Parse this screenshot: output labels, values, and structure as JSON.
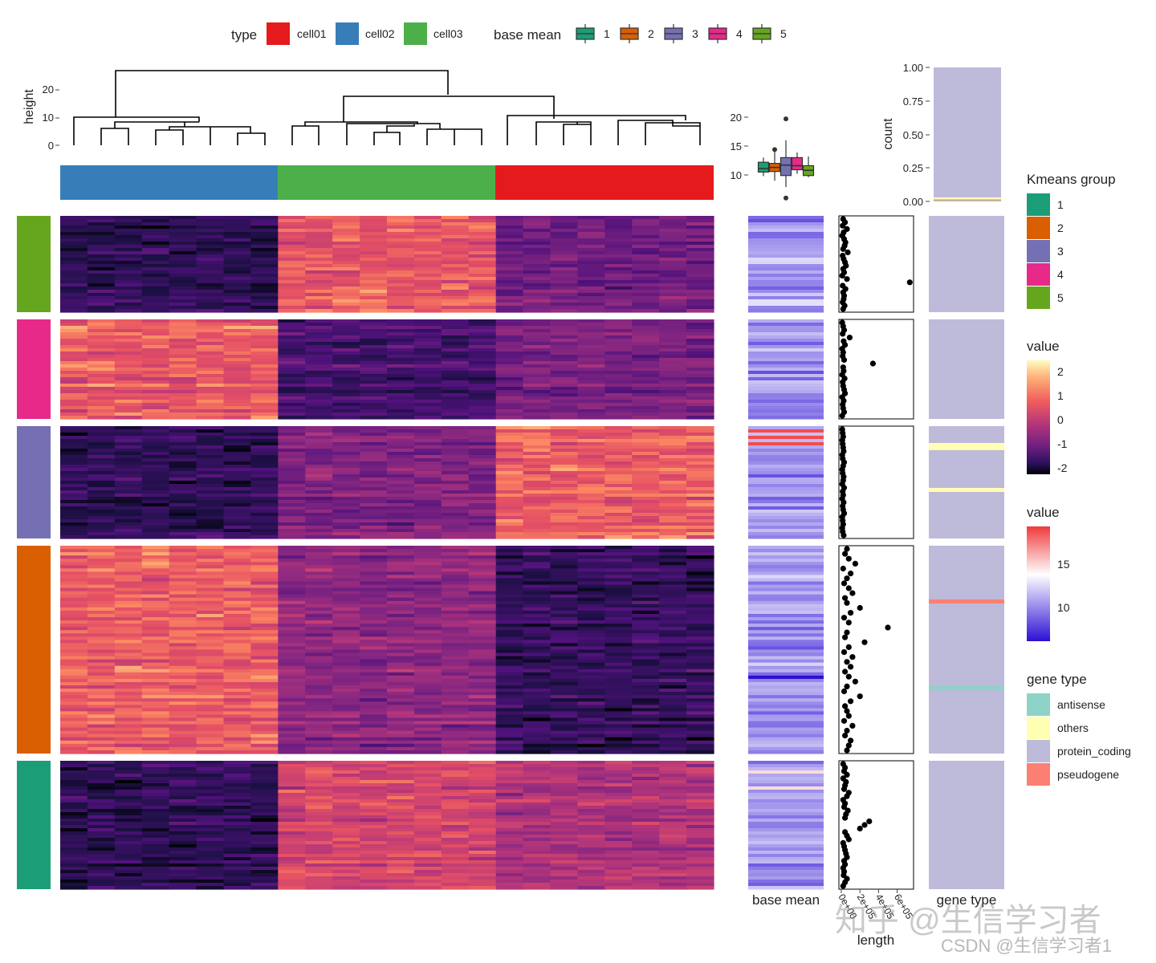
{
  "colors": {
    "cell01": "#e41a1c",
    "cell02": "#377eb8",
    "cell03": "#4daf4a",
    "km1": "#1b9e77",
    "km2": "#d95f02",
    "km3": "#7570b3",
    "km4": "#e7298a",
    "km5": "#66a61e",
    "antisense": "#8dd3c7",
    "others": "#ffffb3",
    "protein_coding": "#bebada",
    "pseudogene": "#fb8072"
  },
  "legend_top": {
    "type_title": "type",
    "type_items": [
      "cell01",
      "cell02",
      "cell03"
    ],
    "basemean_title": "base mean",
    "basemean_items": [
      "1",
      "2",
      "3",
      "4",
      "5"
    ]
  },
  "legend_right": {
    "kmeans_title": "Kmeans group",
    "kmeans_items": [
      "1",
      "2",
      "3",
      "4",
      "5"
    ],
    "value1_title": "value",
    "value1_ticks": [
      "2",
      "1",
      "0",
      "-1",
      "-2"
    ],
    "value2_title": "value",
    "value2_ticks": [
      "15",
      "10"
    ],
    "genetype_title": "gene type",
    "genetype_items": [
      "antisense",
      "others",
      "protein_coding",
      "pseudogene"
    ]
  },
  "axes": {
    "height_label": "height",
    "height_ticks": [
      "20",
      "10",
      "0"
    ],
    "box_ticks": [
      "20",
      "15",
      "10"
    ],
    "count_label": "count",
    "count_ticks": [
      "1.00",
      "0.75",
      "0.50",
      "0.25",
      "0.00"
    ],
    "basemean_label": "base mean",
    "length_label": "length",
    "length_ticks": [
      "0e+00",
      "2e+05",
      "4e+05",
      "6e+05"
    ],
    "genetype_label": "gene type"
  },
  "watermark": {
    "line1": "知乎 @生信学习者",
    "line2": "CSDN @生信学习者1"
  },
  "chart_data": {
    "type": "heatmap",
    "title": "",
    "columns_by_type": [
      {
        "type": "cell02",
        "n": 8
      },
      {
        "type": "cell03",
        "n": 8
      },
      {
        "type": "cell01",
        "n": 8
      }
    ],
    "row_groups_top_to_bottom": [
      {
        "kmeans": "5",
        "rows": 30,
        "pattern": {
          "cell02": -1.3,
          "cell03": 1.2,
          "cell01": -0.4
        }
      },
      {
        "kmeans": "4",
        "rows": 31,
        "pattern": {
          "cell02": 1.2,
          "cell03": -1.0,
          "cell01": -0.3
        }
      },
      {
        "kmeans": "3",
        "rows": 35,
        "pattern": {
          "cell02": -1.3,
          "cell03": -0.2,
          "cell01": 1.3
        }
      },
      {
        "kmeans": "2",
        "rows": 64,
        "pattern": {
          "cell02": 1.3,
          "cell03": 0.0,
          "cell01": -1.2
        }
      },
      {
        "kmeans": "1",
        "rows": 40,
        "pattern": {
          "cell02": -1.3,
          "cell03": 0.9,
          "cell01": 0.4
        }
      }
    ],
    "value_range": [
      -2,
      2.5
    ],
    "base_mean_range": [
      8,
      18
    ],
    "base_mean_boxplot": [
      {
        "group": "1",
        "min": 9.8,
        "q1": 10.5,
        "median": 11.1,
        "q3": 12.2,
        "max": 13.0,
        "outliers": []
      },
      {
        "group": "2",
        "min": 9.0,
        "q1": 10.6,
        "median": 11.3,
        "q3": 12.0,
        "max": 14.4,
        "outliers": [
          14.4
        ]
      },
      {
        "group": "3",
        "min": 7.9,
        "q1": 9.9,
        "median": 11.7,
        "q3": 13.0,
        "max": 16.0,
        "outliers": [
          6.0,
          19.7
        ]
      },
      {
        "group": "4",
        "min": 10.2,
        "q1": 10.9,
        "median": 11.6,
        "q3": 13.0,
        "max": 13.9,
        "outliers": []
      },
      {
        "group": "5",
        "min": 9.6,
        "q1": 9.9,
        "median": 10.8,
        "q3": 11.6,
        "max": 13.2,
        "outliers": []
      }
    ],
    "gene_type_counts": {
      "protein_coding": 0.97,
      "others": 0.015,
      "pseudogene": 0.008,
      "antisense": 0.007
    },
    "count_ylim": [
      0,
      1
    ],
    "length_xlim": [
      0,
      750000
    ],
    "length_points_per_group": [
      [
        20000,
        40000,
        15000,
        60000,
        25000,
        10000,
        30000,
        45000,
        35000,
        20000,
        70000,
        15000,
        25000,
        40000,
        50000,
        20000,
        30000,
        10000,
        60000,
        735000,
        15000,
        45000,
        20000,
        30000,
        25000,
        15000,
        35000,
        20000
      ],
      [
        10000,
        20000,
        30000,
        15000,
        90000,
        25000,
        40000,
        10000,
        20000,
        15000,
        30000,
        340000,
        20000,
        25000,
        10000,
        35000,
        15000,
        20000,
        30000,
        40000,
        10000,
        25000,
        15000,
        20000,
        30000,
        10000
      ],
      [
        10000,
        15000,
        20000,
        10000,
        15000,
        20000,
        25000,
        10000,
        15000,
        30000,
        20000,
        10000,
        15000,
        25000,
        20000,
        10000,
        30000,
        15000,
        20000,
        10000,
        25000,
        15000,
        20000,
        30000,
        10000,
        15000,
        20000,
        10000,
        15000,
        25000
      ],
      [
        60000,
        40000,
        80000,
        150000,
        20000,
        100000,
        60000,
        30000,
        80000,
        120000,
        40000,
        60000,
        200000,
        100000,
        30000,
        80000,
        500000,
        60000,
        40000,
        250000,
        80000,
        30000,
        120000,
        60000,
        100000,
        40000,
        80000,
        150000,
        60000,
        30000,
        200000,
        100000,
        40000,
        60000,
        80000,
        30000,
        120000,
        60000,
        40000,
        100000,
        80000,
        60000
      ],
      [
        20000,
        40000,
        30000,
        60000,
        20000,
        50000,
        40000,
        30000,
        80000,
        60000,
        20000,
        40000,
        30000,
        70000,
        50000,
        40000,
        300000,
        250000,
        200000,
        40000,
        60000,
        80000,
        20000,
        30000,
        40000,
        50000,
        60000,
        30000,
        40000,
        20000,
        30000,
        25000,
        60000,
        40000,
        20000
      ]
    ]
  }
}
